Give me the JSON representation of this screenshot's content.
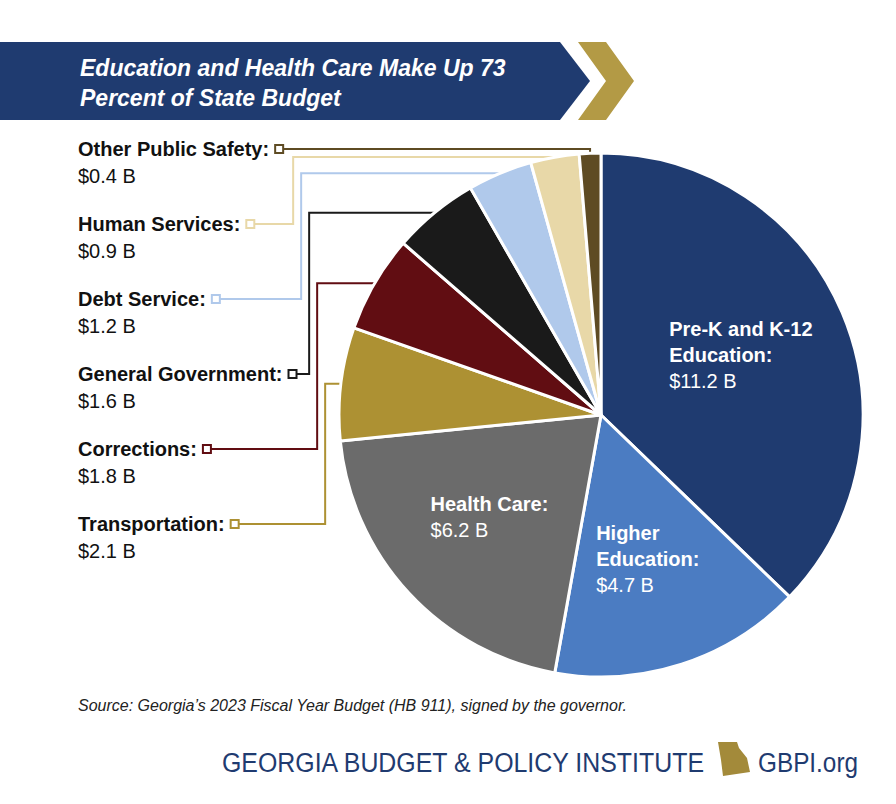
{
  "chart_data": {
    "type": "pie",
    "title": "Education and Health Care Make Up 73 Percent of State Budget",
    "source": "Source: Georgia’s 2023 Fiscal Year Budget (HB 911), signed by the governor.",
    "footer": "GEORGIA BUDGET & POLICY INSTITUTE",
    "website": "GBPI.org",
    "categories": [
      "Pre-K and K-12 Education:",
      "Higher Education:",
      "Health Care:",
      "Transportation:",
      "Corrections:",
      "General Government:",
      "Debt Service:",
      "Human Services:",
      "Other Public Safety:"
    ],
    "values": [
      11.2,
      4.7,
      6.2,
      2.1,
      1.8,
      1.6,
      1.2,
      0.9,
      0.4
    ],
    "value_labels": [
      "$11.2 B",
      "$4.7 B",
      "$6.2 B",
      "$2.1 B",
      "$1.8 B",
      "$1.6 B",
      "$1.2 B",
      "$0.9 B",
      "$0.4 B"
    ],
    "colors": [
      "#1f3b70",
      "#4b7cc2",
      "#6b6b6b",
      "#ad9133",
      "#610d12",
      "#1a1a1a",
      "#b0c9eb",
      "#e8d8a8",
      "#5e4b23"
    ],
    "data_labels": true
  }
}
